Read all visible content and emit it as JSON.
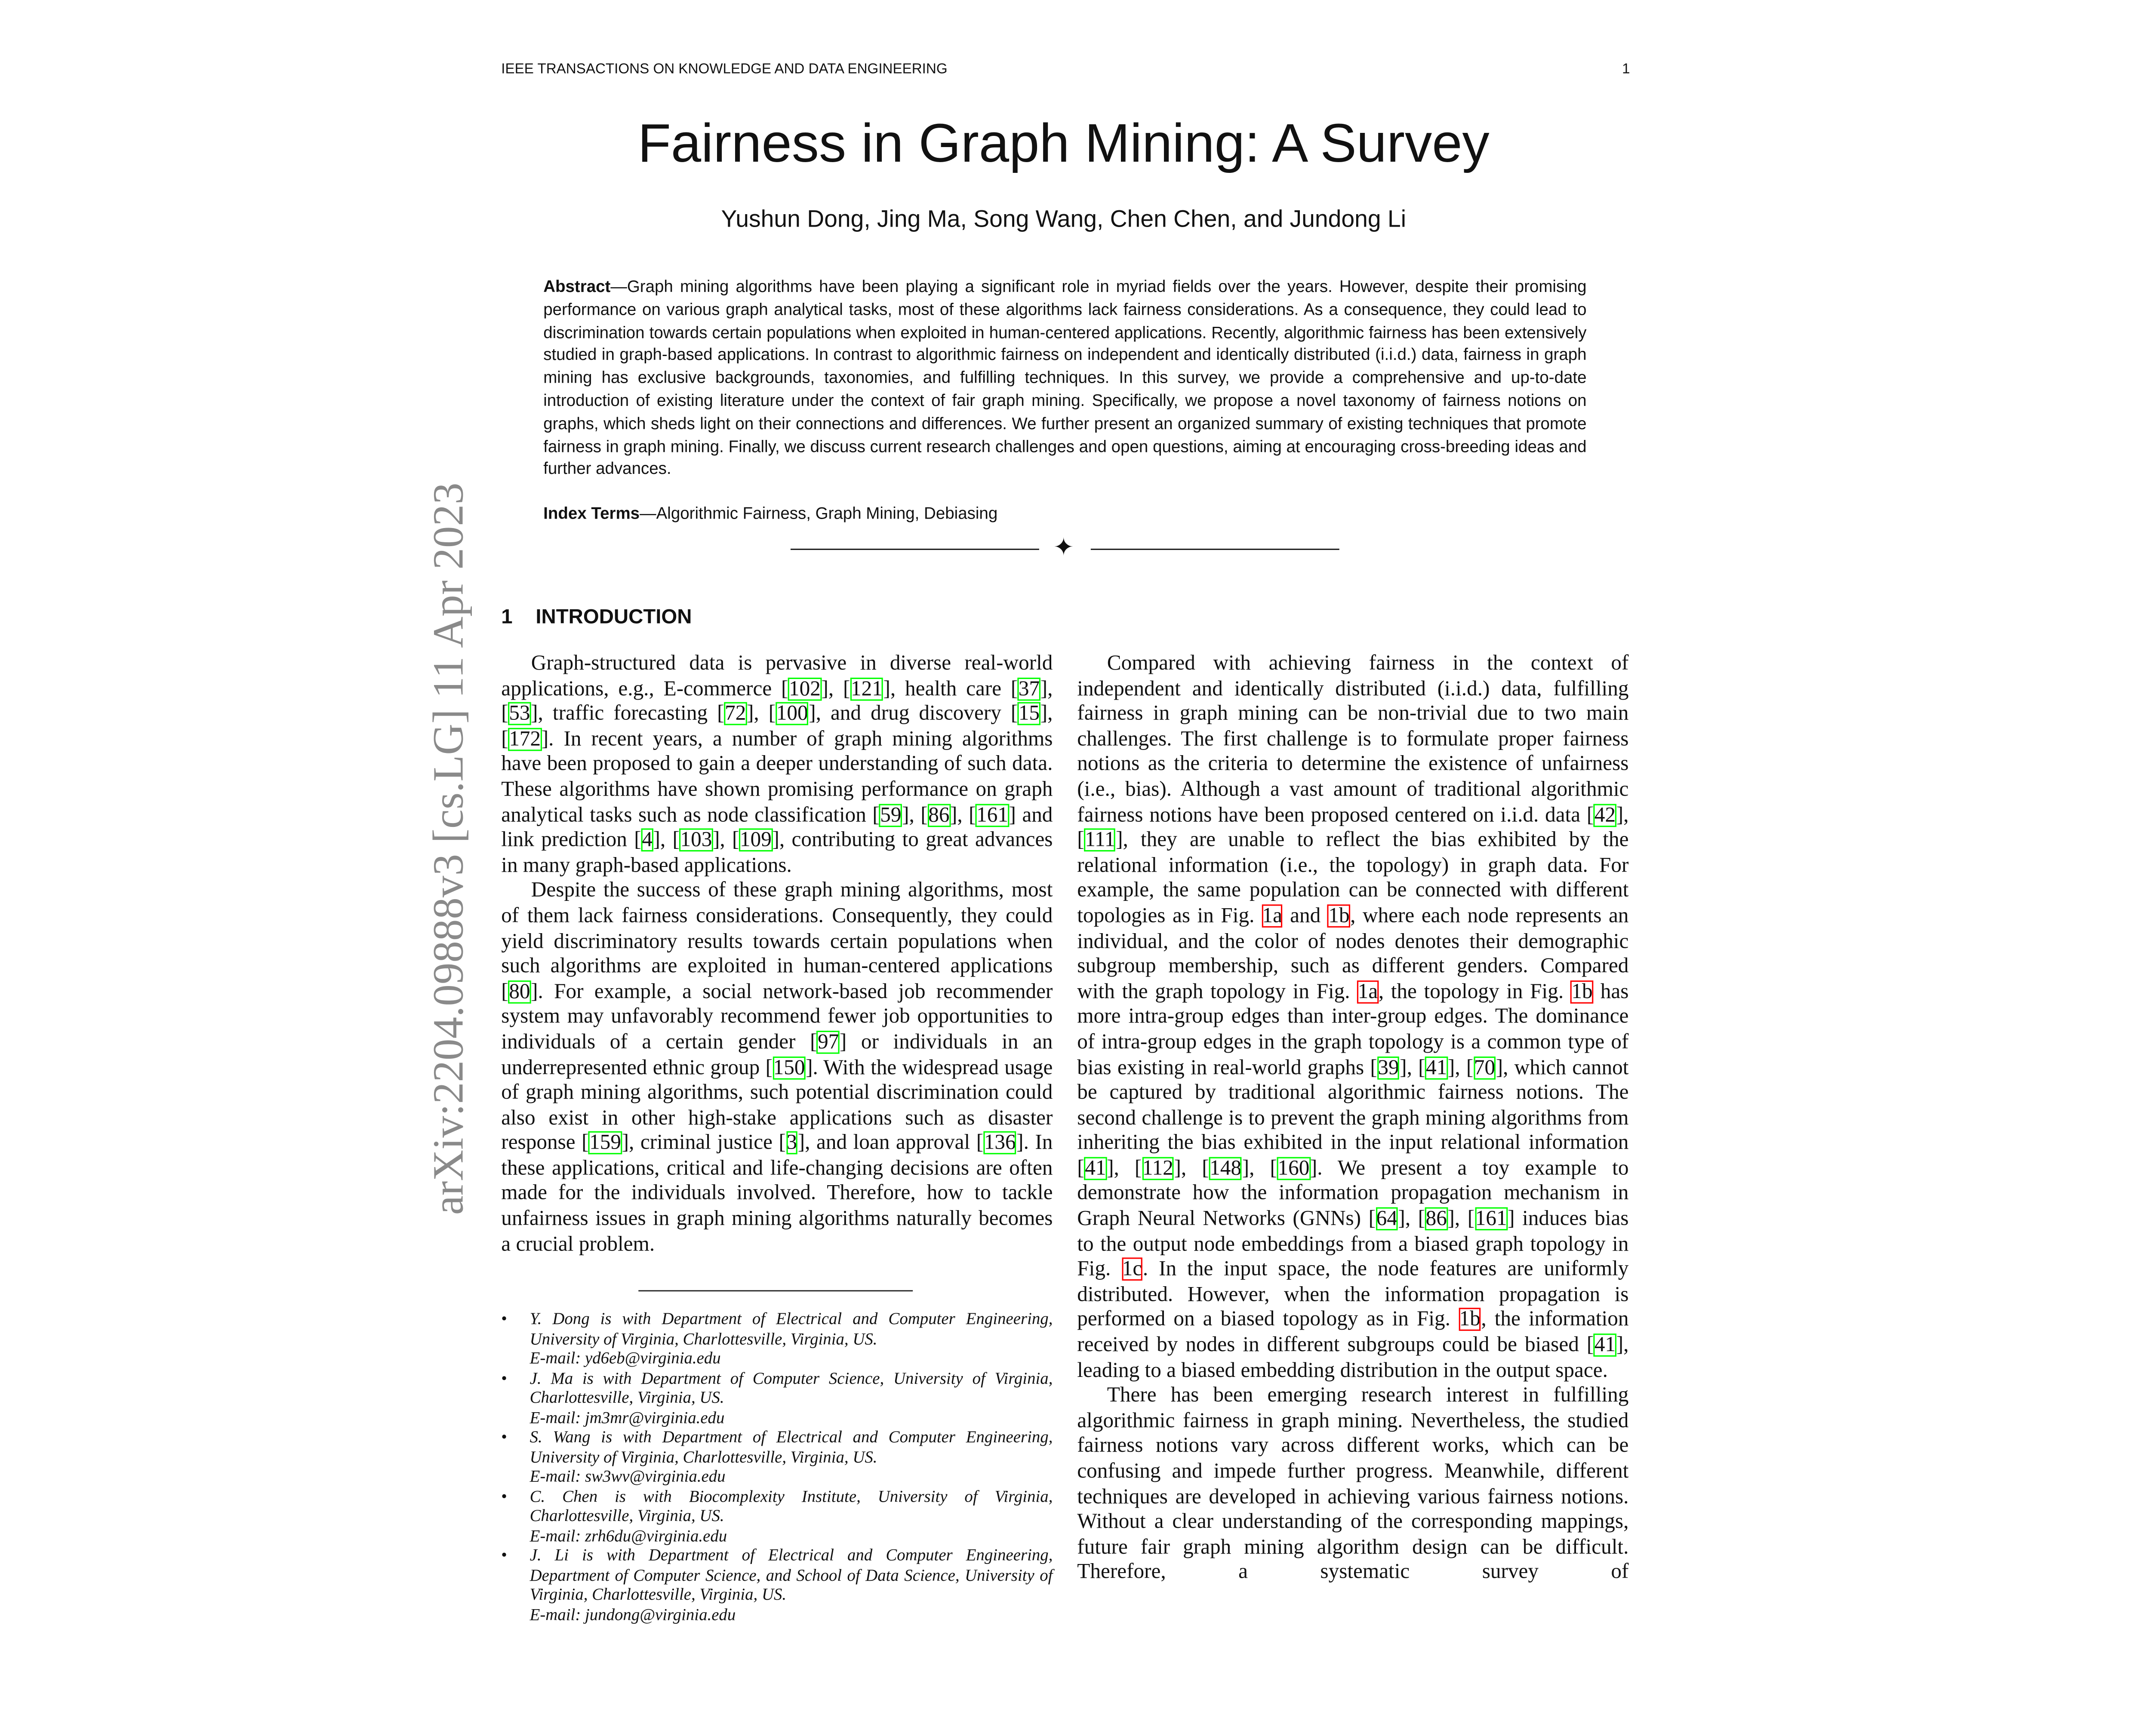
{
  "header": {
    "journal": "IEEE TRANSACTIONS ON KNOWLEDGE AND DATA ENGINEERING",
    "page_number": "1"
  },
  "title": "Fairness in Graph Mining: A Survey",
  "authors": "Yushun Dong, Jing Ma, Song Wang, Chen Chen, and Jundong Li",
  "abstract": {
    "label": "Abstract",
    "text": "—Graph mining algorithms have been playing a significant role in myriad fields over the years. However, despite their promising performance on various graph analytical tasks, most of these algorithms lack fairness considerations. As a consequence, they could lead to discrimination towards certain populations when exploited in human-centered applications. Recently, algorithmic fairness has been extensively studied in graph-based applications. In contrast to algorithmic fairness on independent and identically distributed (i.i.d.) data, fairness in graph mining has exclusive backgrounds, taxonomies, and fulfilling techniques. In this survey, we provide a comprehensive and up-to-date introduction of existing literature under the context of fair graph mining. Specifically, we propose a novel taxonomy of fairness notions on graphs, which sheds light on their connections and differences. We further present an organized summary of existing techniques that promote fairness in graph mining. Finally, we discuss current research challenges and open questions, aiming at encouraging cross-breeding ideas and further advances."
  },
  "index_terms": {
    "label": "Index Terms",
    "text": "—Algorithmic Fairness, Graph Mining, Debiasing"
  },
  "divider_symbol": "✦",
  "arxiv_stamp": "arXiv:2204.09888v3  [cs.LG]  11 Apr 2023",
  "section": {
    "number": "1",
    "first_letter": "I",
    "rest": "NTRODUCTION"
  },
  "colors": {
    "citation_box": "#00ff00",
    "figure_ref_box": "#ff0000",
    "arxiv_stamp": "#8a8a8a"
  },
  "left_column": [
    [
      "Graph-structured data is pervasive in diverse real-world applications, e.g., E-commerce [",
      {
        "ref": "102"
      },
      "], [",
      {
        "ref": "121"
      },
      "], health care [",
      {
        "ref": "37"
      },
      "], [",
      {
        "ref": "53"
      },
      "], traffic forecasting [",
      {
        "ref": "72"
      },
      "], [",
      {
        "ref": "100"
      },
      "], and drug discovery [",
      {
        "ref": "15"
      },
      "], [",
      {
        "ref": "172"
      },
      "]. In recent years, a number of graph mining algorithms have been proposed to gain a deeper understanding of such data. These algorithms have shown promising performance on graph analytical tasks such as node classification [",
      {
        "ref": "59"
      },
      "], [",
      {
        "ref": "86"
      },
      "], [",
      {
        "ref": "161"
      },
      "] and link prediction [",
      {
        "ref": "4"
      },
      "], [",
      {
        "ref": "103"
      },
      "], [",
      {
        "ref": "109"
      },
      "], contributing to great advances in many graph-based applications."
    ],
    [
      "Despite the success of these graph mining algorithms, most of them lack fairness considerations. Consequently, they could yield discriminatory results towards certain populations when such algorithms are exploited in human-centered applications [",
      {
        "ref": "80"
      },
      "]. For example, a social network-based job recommender system may unfavorably recommend fewer job opportunities to individuals of a certain gender [",
      {
        "ref": "97"
      },
      "] or individuals in an underrepresented ethnic group [",
      {
        "ref": "150"
      },
      "]. With the widespread usage of graph mining algorithms, such potential discrimination could also exist in other high-stake applications such as disaster response [",
      {
        "ref": "159"
      },
      "], criminal justice [",
      {
        "ref": "3"
      },
      "], and loan approval [",
      {
        "ref": "136"
      },
      "]. In these applications, critical and life-changing decisions are often made for the individuals involved. Therefore, how to tackle unfairness issues in graph mining algorithms naturally becomes a crucial problem."
    ]
  ],
  "right_column": [
    [
      "Compared with achieving fairness in the context of independent and identically distributed (i.i.d.) data, fulfilling fairness in graph mining can be non-trivial due to two main challenges. The first challenge is to formulate proper fairness notions as the criteria to determine the existence of unfairness (i.e., bias). Although a vast amount of traditional algorithmic fairness notions have been proposed centered on i.i.d. data [",
      {
        "ref": "42"
      },
      "], [",
      {
        "ref": "111"
      },
      "], they are unable to reflect the bias exhibited by the relational information (i.e., the topology) in graph data. For example, the same population can be connected with different topologies as in Fig. ",
      {
        "fig": "1a"
      },
      " and ",
      {
        "fig": "1b"
      },
      ", where each node represents an individual, and the color of nodes denotes their demographic subgroup membership, such as different genders. Compared with the graph topology in Fig. ",
      {
        "fig": "1a"
      },
      ", the topology in Fig. ",
      {
        "fig": "1b"
      },
      " has more intra-group edges than inter-group edges. The dominance of intra-group edges in the graph topology is a common type of bias existing in real-world graphs [",
      {
        "ref": "39"
      },
      "], [",
      {
        "ref": "41"
      },
      "], [",
      {
        "ref": "70"
      },
      "], which cannot be captured by traditional algorithmic fairness notions. The second challenge is to prevent the graph mining algorithms from inheriting the bias exhibited in the input relational information [",
      {
        "ref": "41"
      },
      "], [",
      {
        "ref": "112"
      },
      "], [",
      {
        "ref": "148"
      },
      "], [",
      {
        "ref": "160"
      },
      "]. We present a toy example to demonstrate how the information propagation mechanism in Graph Neural Networks (GNNs) [",
      {
        "ref": "64"
      },
      "], [",
      {
        "ref": "86"
      },
      "], [",
      {
        "ref": "161"
      },
      "] induces bias to the output node embeddings from a biased graph topology in Fig. ",
      {
        "fig": "1c"
      },
      ". In the input space, the node features are uniformly distributed. However, when the information propagation is performed on a biased topology as in Fig. ",
      {
        "fig": "1b"
      },
      ", the information received by nodes in different subgroups could be biased [",
      {
        "ref": "41"
      },
      "], leading to a biased embedding distribution in the output space."
    ],
    [
      "There has been emerging research interest in fulfilling algorithmic fairness in graph mining. Nevertheless, the studied fairness notions vary across different works, which can be confusing and impede further progress. Meanwhile, different techniques are developed in achieving various fairness notions. Without a clear understanding of the corresponding mappings, future fair graph mining algorithm design can be difficult. Therefore, a systematic survey of"
    ]
  ],
  "footnotes": [
    "Y. Dong is with Department of Electrical and Computer Engineering, University of Virginia, Charlottesville, Virginia, US.\nE-mail: yd6eb@virginia.edu",
    "J. Ma is with Department of Computer Science, University of Virginia, Charlottesville, Virginia, US.\nE-mail: jm3mr@virginia.edu",
    "S. Wang is with Department of Electrical and Computer Engineering, University of Virginia, Charlottesville, Virginia, US.\nE-mail: sw3wv@virginia.edu",
    "C. Chen is with Biocomplexity Institute, University of Virginia, Charlottesville, Virginia, US.\nE-mail: zrh6du@virginia.edu",
    "J. Li is with Department of Electrical and Computer Engineering, Department of Computer Science, and School of Data Science, University of Virginia, Charlottesville, Virginia, US.\nE-mail: jundong@virginia.edu"
  ],
  "footnote_bullet": "•"
}
